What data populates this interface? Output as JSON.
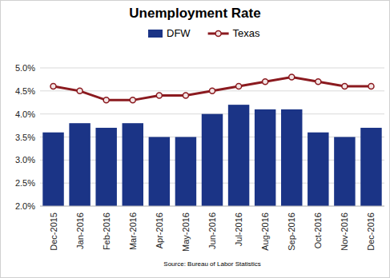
{
  "chart_data": {
    "type": "bar",
    "title": "Unemployment Rate",
    "source": "Source: Bureau of Labor Statistics",
    "categories": [
      "Dec-2015",
      "Jan-2016",
      "Feb-2016",
      "Mar-2016",
      "Apr-2016",
      "May-2016",
      "Jun-2016",
      "Jul-2016",
      "Aug-2016",
      "Sep-2016",
      "Oct-2016",
      "Nov-2016",
      "Dec-2016"
    ],
    "series": [
      {
        "name": "DFW",
        "type": "bar",
        "color": "#1b3486",
        "values": [
          3.6,
          3.8,
          3.7,
          3.8,
          3.5,
          3.5,
          4.0,
          4.2,
          4.1,
          4.1,
          3.6,
          3.5,
          3.7
        ]
      },
      {
        "name": "Texas",
        "type": "line",
        "color": "#8b1a1f",
        "marker": "circle",
        "values": [
          4.6,
          4.5,
          4.3,
          4.3,
          4.4,
          4.4,
          4.5,
          4.6,
          4.7,
          4.8,
          4.7,
          4.6,
          4.6
        ]
      }
    ],
    "ylim": [
      2.0,
      5.0
    ],
    "yticks": [
      {
        "value": 2.0,
        "label": "2.0%"
      },
      {
        "value": 2.5,
        "label": "2.5%"
      },
      {
        "value": 3.0,
        "label": "3.0%"
      },
      {
        "value": 3.5,
        "label": "3.5%"
      },
      {
        "value": 4.0,
        "label": "4.0%"
      },
      {
        "value": 4.5,
        "label": "4.5%"
      },
      {
        "value": 5.0,
        "label": "5.0%"
      }
    ],
    "grid": true,
    "legend": "top"
  }
}
